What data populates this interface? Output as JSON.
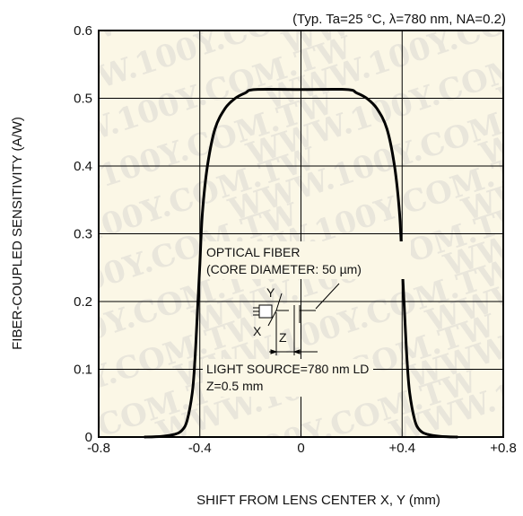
{
  "chart_data": {
    "type": "line",
    "title": "",
    "subtitle": "(Typ. Ta=25 °C, λ=780 nm,  NA=0.2)",
    "xlabel": "SHIFT FROM LENS CENTER  X, Y (mm)",
    "ylabel": "FIBER-COUPLED SENSITIVITY (A/W)",
    "xlim": [
      -0.8,
      0.8
    ],
    "ylim": [
      0,
      0.6
    ],
    "xticks": [
      -0.8,
      -0.4,
      0,
      0.4,
      0.8
    ],
    "xtick_labels": [
      "-0.8",
      "-0.4",
      "0",
      "+0.4",
      "+0.8"
    ],
    "yticks": [
      0,
      0.1,
      0.2,
      0.3,
      0.4,
      0.5,
      0.6
    ],
    "ytick_labels": [
      "0",
      "0.1",
      "0.2",
      "0.3",
      "0.4",
      "0.5",
      "0.6"
    ],
    "grid": true,
    "background_color": "#fbf7e6",
    "series": [
      {
        "color": "#000000",
        "x": [
          -0.62,
          -0.55,
          -0.5,
          -0.47,
          -0.45,
          -0.43,
          -0.42,
          -0.41,
          -0.4,
          -0.39,
          -0.37,
          -0.34,
          -0.3,
          -0.26,
          -0.22,
          -0.18,
          0,
          0.18,
          0.22,
          0.26,
          0.3,
          0.34,
          0.37,
          0.39,
          0.4,
          0.41,
          0.42,
          0.43,
          0.45,
          0.47,
          0.5,
          0.55,
          0.62
        ],
        "y": [
          0.0,
          0.001,
          0.004,
          0.01,
          0.025,
          0.065,
          0.11,
          0.18,
          0.255,
          0.33,
          0.4,
          0.455,
          0.485,
          0.5,
          0.508,
          0.513,
          0.513,
          0.513,
          0.508,
          0.5,
          0.485,
          0.455,
          0.4,
          0.33,
          0.255,
          0.18,
          0.11,
          0.065,
          0.025,
          0.01,
          0.004,
          0.001,
          0.0
        ]
      }
    ],
    "annotations": {
      "fiber_line1": "OPTICAL FIBER",
      "fiber_line2": "(CORE DIAMETER: 50 µm)",
      "source_line1": "LIGHT SOURCE=780 nm LD",
      "source_line2": "Z=0.5 mm",
      "axis_y": "Y",
      "axis_x": "X",
      "axis_z": "Z"
    },
    "watermark": "WWW.100Y.COM.TW"
  }
}
